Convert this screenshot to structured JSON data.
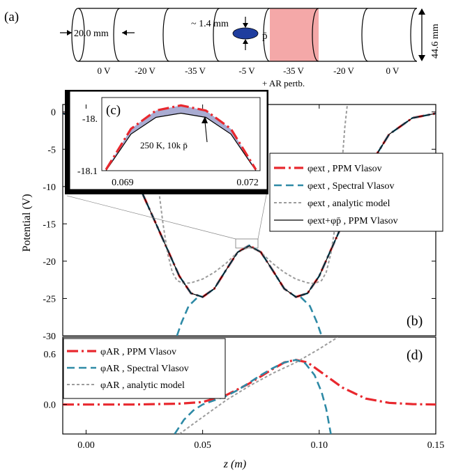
{
  "panel_labels": {
    "a": "(a)",
    "b": "(b)",
    "c": "(c)",
    "d": "(d)"
  },
  "colors": {
    "ppm": "#e8282e",
    "spectral": "#2e8aa6",
    "analytic": "#9c9c9c",
    "total": "#000000",
    "ar_electrode": "#f4a8a8",
    "antiproton": "#1f3d9e",
    "fill_c": "#a9acd2"
  },
  "schematic": {
    "inner_diameter": "20.0 mm",
    "outer_diameter": "44.6 mm",
    "plasma_size": "~ 1.4 mm",
    "plasma_label": "p̄",
    "electrode_voltages": [
      "0 V",
      "-20 V",
      "-35 V",
      "-5 V",
      "-35 V",
      "-20 V",
      "0 V"
    ],
    "perturbation_note": "+ AR pertb."
  },
  "chart_data": [
    {
      "panel": "b",
      "type": "line",
      "ylabel": "Potential (V)",
      "xlim": [
        -0.01,
        0.15
      ],
      "ylim": [
        -30,
        1
      ],
      "yticks": [
        0,
        -5,
        -10,
        -15,
        -20,
        -25,
        -30
      ],
      "grid": false,
      "legend_position": "right",
      "series": [
        {
          "name": "φext , PPM Vlasov",
          "style": "dash-dot",
          "x": [
            -0.01,
            0.0,
            0.01,
            0.02,
            0.03,
            0.04,
            0.045,
            0.05,
            0.055,
            0.06,
            0.065,
            0.07,
            0.075,
            0.08,
            0.085,
            0.09,
            0.095,
            0.1,
            0.11,
            0.12,
            0.13,
            0.14,
            0.15
          ],
          "y": [
            -0.2,
            -0.8,
            -3,
            -8,
            -15,
            -22,
            -24.3,
            -24.8,
            -23.7,
            -21.2,
            -18.8,
            -17.9,
            -18.8,
            -21.2,
            -23.7,
            -24.8,
            -24.3,
            -22,
            -15,
            -8,
            -3,
            -0.8,
            -0.2
          ]
        },
        {
          "name": "φext , Spectral Vlasov",
          "style": "dash",
          "x": [
            -0.01,
            0.0,
            0.01,
            0.02,
            0.03,
            0.04,
            0.045,
            0.05,
            0.055,
            0.06,
            0.065,
            0.07,
            0.075,
            0.08,
            0.085,
            0.09,
            0.095,
            0.1,
            0.11,
            0.12,
            0.13,
            0.14,
            0.15
          ],
          "y": [
            -0.2,
            -0.8,
            -3,
            -8,
            -15,
            -22,
            -24.3,
            -24.8,
            -23.7,
            -21.2,
            -18.8,
            -17.9,
            -18.8,
            -21.2,
            -23.7,
            -24.8,
            -24.3,
            -22,
            -15,
            -8,
            -3,
            -0.8,
            -0.2
          ]
        },
        {
          "name": "φext , Spectral Vlasov",
          "style": "dash",
          "x": [
            0.039,
            0.041,
            0.044,
            0.048
          ],
          "y": [
            -30,
            -28.2,
            -26,
            -24.8
          ]
        },
        {
          "name": "φext , Spectral Vlasov",
          "style": "dash",
          "x": [
            0.092,
            0.096,
            0.099,
            0.101
          ],
          "y": [
            -24.8,
            -26,
            -28.2,
            -30
          ]
        },
        {
          "name": "φext , analytic model",
          "style": "dot",
          "x": [
            0.031,
            0.033,
            0.035,
            0.037,
            0.039,
            0.042,
            0.045,
            0.05,
            0.055,
            0.06,
            0.065,
            0.07,
            0.075,
            0.08,
            0.085,
            0.09,
            0.095,
            0.098,
            0.101,
            0.103,
            0.105,
            0.107,
            0.109
          ],
          "y": [
            -10,
            -15,
            -19,
            -21.5,
            -22.6,
            -23,
            -22.9,
            -22.4,
            -21.5,
            -20.3,
            -18.8,
            -18.1,
            -18.8,
            -20.3,
            -21.5,
            -22.4,
            -22.9,
            -23,
            -22.6,
            -21.5,
            -19,
            -15,
            -10
          ]
        },
        {
          "name": "φext , analytic model",
          "style": "dot",
          "x": [
            0.109,
            0.11,
            0.111,
            0.112
          ],
          "y": [
            -10,
            -6,
            -2,
            0.8
          ]
        },
        {
          "name": "φext+φp̄ , PPM Vlasov",
          "style": "solid",
          "x": [
            -0.01,
            0.0,
            0.01,
            0.02,
            0.03,
            0.04,
            0.045,
            0.05,
            0.055,
            0.06,
            0.065,
            0.07,
            0.075,
            0.08,
            0.085,
            0.09,
            0.095,
            0.1,
            0.11,
            0.12,
            0.13,
            0.14,
            0.15
          ],
          "y": [
            -0.2,
            -0.8,
            -3,
            -8,
            -15,
            -22,
            -24.3,
            -24.8,
            -23.7,
            -21.2,
            -18.8,
            -17.95,
            -18.8,
            -21.2,
            -23.7,
            -24.8,
            -24.3,
            -22,
            -15,
            -8,
            -3,
            -0.8,
            -0.2
          ]
        }
      ]
    },
    {
      "panel": "c",
      "type": "area",
      "xlim": [
        0.0685,
        0.0723
      ],
      "ylim": [
        -18.1,
        -17.96
      ],
      "xticks": [
        "0.069",
        "0.072"
      ],
      "yticks": [
        "-18.",
        "-18.1"
      ],
      "annotation": "250 K, 10k p̄",
      "series": [
        {
          "name": "φext , PPM Vlasov",
          "style": "dash-dot",
          "x": [
            0.0686,
            0.0692,
            0.0698,
            0.0704,
            0.071,
            0.0716,
            0.0722
          ],
          "y": [
            -18.098,
            -18.02,
            -17.985,
            -17.975,
            -17.985,
            -18.02,
            -18.098
          ]
        },
        {
          "name": "φext+φp̄ , PPM Vlasov",
          "style": "solid",
          "x": [
            0.0686,
            0.0692,
            0.0698,
            0.0704,
            0.071,
            0.0716,
            0.0722
          ],
          "y": [
            -18.1,
            -18.03,
            -17.998,
            -17.99,
            -17.998,
            -18.03,
            -18.1
          ]
        }
      ]
    },
    {
      "panel": "d",
      "type": "line",
      "xlabel": "z (m)",
      "xlim": [
        -0.01,
        0.15
      ],
      "ylim": [
        -0.35,
        0.8
      ],
      "xticks": [
        "0.00",
        "0.05",
        "0.10",
        "0.15"
      ],
      "yticks": [
        "0.0",
        "0.6"
      ],
      "legend_position": "top-left",
      "series": [
        {
          "name": "φAR , PPM Vlasov",
          "style": "dash-dot",
          "x": [
            -0.01,
            0.0,
            0.02,
            0.04,
            0.05,
            0.06,
            0.07,
            0.08,
            0.085,
            0.09,
            0.095,
            0.1,
            0.11,
            0.12,
            0.13,
            0.14,
            0.15
          ],
          "y": [
            0.0,
            0.0,
            0.0,
            0.01,
            0.03,
            0.11,
            0.25,
            0.42,
            0.5,
            0.53,
            0.5,
            0.4,
            0.2,
            0.07,
            0.02,
            0.005,
            0.0
          ]
        },
        {
          "name": "φAR , Spectral Vlasov",
          "style": "dash",
          "x": [
            0.038,
            0.042,
            0.046,
            0.05,
            0.055,
            0.06,
            0.065,
            0.07,
            0.075,
            0.08,
            0.085,
            0.09,
            0.094,
            0.098,
            0.101,
            0.103,
            0.105
          ],
          "y": [
            -0.35,
            -0.18,
            -0.07,
            0.0,
            0.05,
            0.1,
            0.17,
            0.26,
            0.35,
            0.43,
            0.5,
            0.53,
            0.49,
            0.35,
            0.15,
            -0.05,
            -0.35
          ]
        },
        {
          "name": "φAR , analytic model",
          "style": "dot",
          "x": [
            0.04,
            0.05,
            0.06,
            0.07,
            0.08,
            0.09,
            0.1,
            0.108
          ],
          "y": [
            -0.35,
            -0.15,
            0.05,
            0.22,
            0.37,
            0.5,
            0.66,
            0.8
          ]
        }
      ]
    }
  ]
}
